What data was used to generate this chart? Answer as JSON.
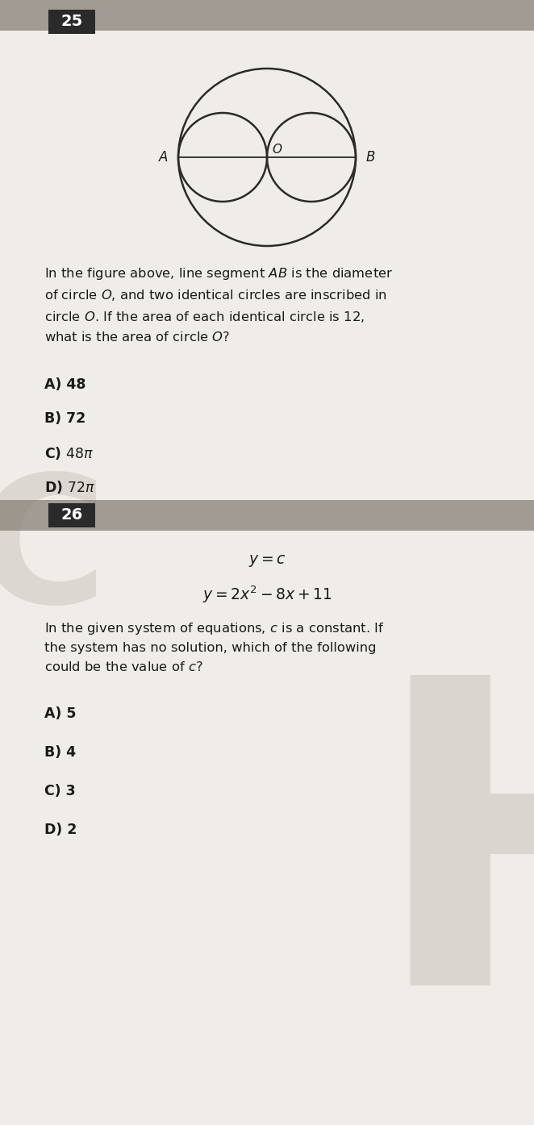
{
  "page_bg": "#f0ede8",
  "q25_number": "25",
  "q26_number": "26",
  "number_box_color": "#2a2a2a",
  "number_text_color": "#ffffff",
  "main_text_color": "#1a1a1a",
  "watermark_color": "#c0b8b0",
  "header_strip_color": "#888077",
  "circle_edge_color": "#2a2a2a",
  "line_color": "#2a2a2a",
  "q25_body": "In the figure above, line segment $\\mathit{AB}$ is the diameter\nof circle $\\mathit{O}$, and two identical circles are inscribed in\ncircle $\\mathit{O}$. If the area of each identical circle is 12,\nwhat is the area of circle $\\mathit{O}$?",
  "q25_choices": [
    [
      "A)",
      "48"
    ],
    [
      "B)",
      "72"
    ],
    [
      "C)",
      "48\\pi"
    ],
    [
      "D)",
      "72\\pi"
    ]
  ],
  "q26_eq1": "$y = c$",
  "q26_eq2": "$y = 2x^2 - 8x + 11$",
  "q26_body": "In the given system of equations, $\\mathit{c}$ is a constant. If\nthe system has no solution, which of the following\ncould be the value of $\\mathit{c}$?",
  "q26_choices": [
    [
      "A)",
      "5"
    ],
    [
      "B)",
      "4"
    ],
    [
      "C)",
      "3"
    ],
    [
      "D)",
      "2"
    ]
  ]
}
